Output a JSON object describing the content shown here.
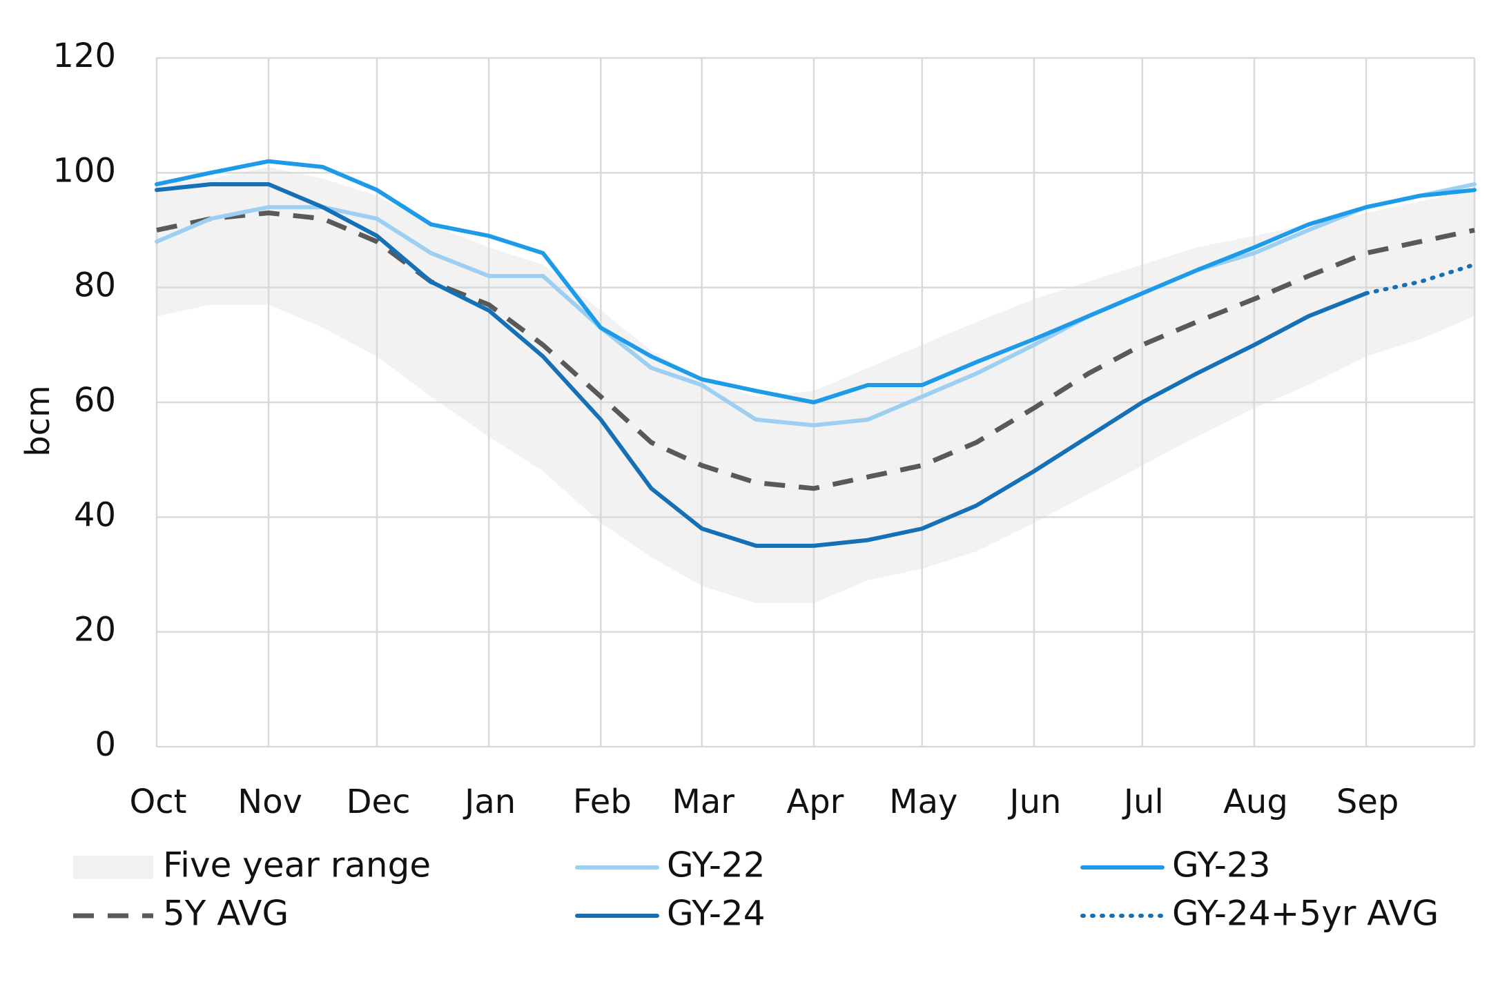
{
  "chart_data": {
    "type": "line",
    "ylabel": "bcm",
    "xlabel": "",
    "ylim": [
      0,
      120
    ],
    "y_ticks": [
      "0",
      "20",
      "40",
      "60",
      "80",
      "100",
      "120"
    ],
    "categories": [
      "Oct",
      "Nov",
      "Dec",
      "Jan",
      "Feb",
      "Mar",
      "Apr",
      "May",
      "Jun",
      "Jul",
      "Aug",
      "Sep"
    ],
    "x_grid_days": [
      0,
      31,
      61,
      92,
      123,
      151,
      182,
      212,
      243,
      273,
      304,
      335
    ],
    "x_max_day": 365,
    "grid": true,
    "legend_position": "bottom",
    "range_band": {
      "name": "Five year range",
      "color": "#f2f2f2",
      "x": [
        0,
        15,
        31,
        46,
        61,
        76,
        92,
        107,
        123,
        137,
        151,
        166,
        182,
        197,
        212,
        227,
        243,
        258,
        273,
        288,
        304,
        319,
        335,
        350,
        365
      ],
      "low": [
        75,
        77,
        77,
        73,
        68,
        61,
        54,
        48,
        39,
        33,
        28,
        25,
        25,
        29,
        31,
        34,
        39,
        44,
        49,
        54,
        59,
        63,
        68,
        71,
        75
      ],
      "high": [
        98,
        99,
        101,
        99,
        96,
        91,
        87,
        84,
        76,
        69,
        64,
        61,
        62,
        66,
        70,
        74,
        78,
        81,
        84,
        87,
        89,
        91,
        93,
        95,
        97
      ]
    },
    "series": [
      {
        "name": "5Y AVG",
        "color": "#595959",
        "style": "dashed",
        "x": [
          0,
          15,
          31,
          46,
          61,
          76,
          92,
          107,
          123,
          137,
          151,
          166,
          182,
          197,
          212,
          227,
          243,
          258,
          273,
          288,
          304,
          319,
          335,
          350,
          365
        ],
        "y": [
          90,
          92,
          93,
          92,
          88,
          81,
          77,
          70,
          61,
          53,
          49,
          46,
          45,
          47,
          49,
          53,
          59,
          65,
          70,
          74,
          78,
          82,
          86,
          88,
          90
        ]
      },
      {
        "name": "GY-22",
        "color": "#9dcff2",
        "style": "solid",
        "x": [
          0,
          15,
          31,
          46,
          61,
          76,
          92,
          107,
          123,
          137,
          151,
          166,
          182,
          197,
          212,
          227,
          243,
          258,
          273,
          288,
          304,
          319,
          335,
          350,
          365
        ],
        "y": [
          88,
          92,
          94,
          94,
          92,
          86,
          82,
          82,
          73,
          66,
          63,
          57,
          56,
          57,
          61,
          65,
          70,
          75,
          79,
          83,
          86,
          90,
          94,
          96,
          98
        ]
      },
      {
        "name": "GY-23",
        "color": "#1e9be8",
        "style": "solid",
        "x": [
          0,
          15,
          31,
          46,
          61,
          76,
          92,
          107,
          123,
          137,
          151,
          166,
          182,
          197,
          212,
          227,
          243,
          258,
          273,
          288,
          304,
          319,
          335,
          350,
          365
        ],
        "y": [
          98,
          100,
          102,
          101,
          97,
          91,
          89,
          86,
          73,
          68,
          64,
          62,
          60,
          63,
          63,
          67,
          71,
          75,
          79,
          83,
          87,
          91,
          94,
          96,
          97
        ]
      },
      {
        "name": "GY-24",
        "color": "#1570b5",
        "style": "solid",
        "x": [
          0,
          15,
          31,
          46,
          61,
          76,
          92,
          107,
          123,
          137,
          151,
          166,
          182,
          197,
          212,
          227,
          243,
          258,
          273,
          288,
          304,
          319,
          335
        ],
        "y": [
          97,
          98,
          98,
          94,
          89,
          81,
          76,
          68,
          57,
          45,
          38,
          35,
          35,
          36,
          38,
          42,
          48,
          54,
          60,
          65,
          70,
          75,
          79
        ]
      },
      {
        "name": "GY-24+5yr AVG",
        "color": "#1570b5",
        "style": "dotted",
        "x": [
          335,
          350,
          365
        ],
        "y": [
          79,
          81,
          84
        ]
      }
    ]
  }
}
